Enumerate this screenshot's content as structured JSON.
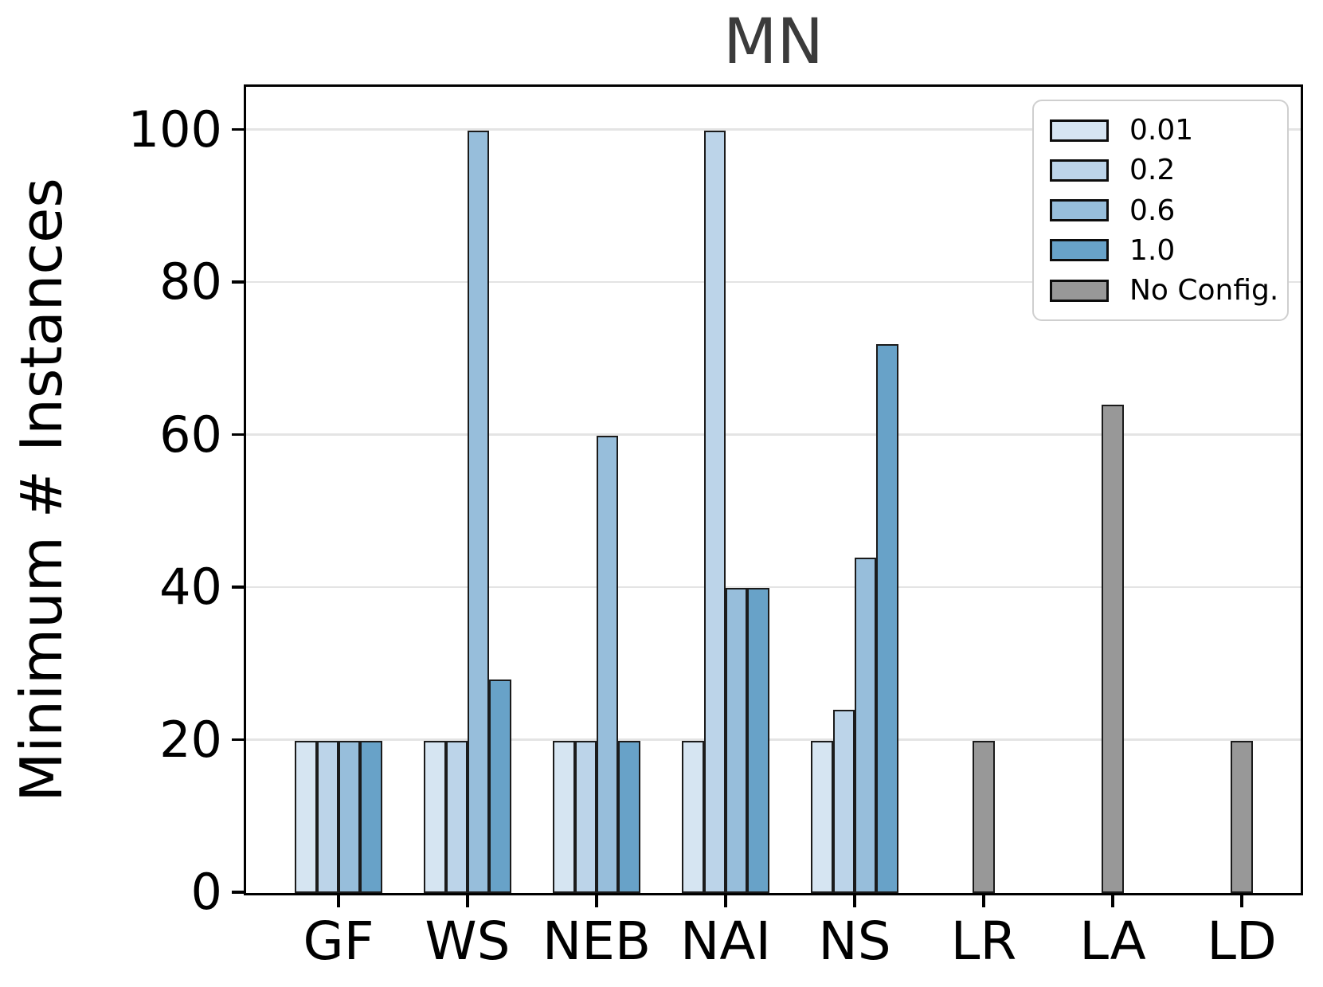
{
  "chart_data": {
    "type": "bar",
    "title": "MN",
    "ylabel": "Minimum # Instances",
    "xlabel": "",
    "categories": [
      "GF",
      "WS",
      "NEB",
      "NAI",
      "NS",
      "LR",
      "LA",
      "LD"
    ],
    "yticks": [
      0,
      20,
      40,
      60,
      80,
      100
    ],
    "ylim": [
      0,
      105.6
    ],
    "grid": true,
    "legend_position": "upper right",
    "edge_color": "#1b1b1b",
    "hatch_style": "/",
    "series": [
      {
        "name": "0.01",
        "color": "#d6e5f2",
        "values": [
          20,
          20,
          20,
          20,
          20,
          null,
          null,
          null
        ],
        "hatch_groups": []
      },
      {
        "name": "0.2",
        "color": "#bcd4e9",
        "values": [
          20,
          20,
          20,
          100,
          24,
          null,
          null,
          null
        ],
        "hatch_groups": [
          "NAI"
        ]
      },
      {
        "name": "0.6",
        "color": "#97bedb",
        "values": [
          20,
          100,
          60,
          40,
          44,
          null,
          null,
          null
        ],
        "hatch_groups": [
          "WS"
        ]
      },
      {
        "name": "1.0",
        "color": "#68a2c8",
        "values": [
          20,
          28,
          20,
          40,
          72,
          null,
          null,
          null
        ],
        "hatch_groups": []
      },
      {
        "name": "No Config.",
        "color": "#989898",
        "values": [
          null,
          null,
          null,
          null,
          null,
          20,
          64,
          20
        ],
        "hatch_groups": []
      }
    ],
    "legend_entries": [
      "0.01",
      "0.2",
      "0.6",
      "1.0",
      "No Config."
    ]
  }
}
